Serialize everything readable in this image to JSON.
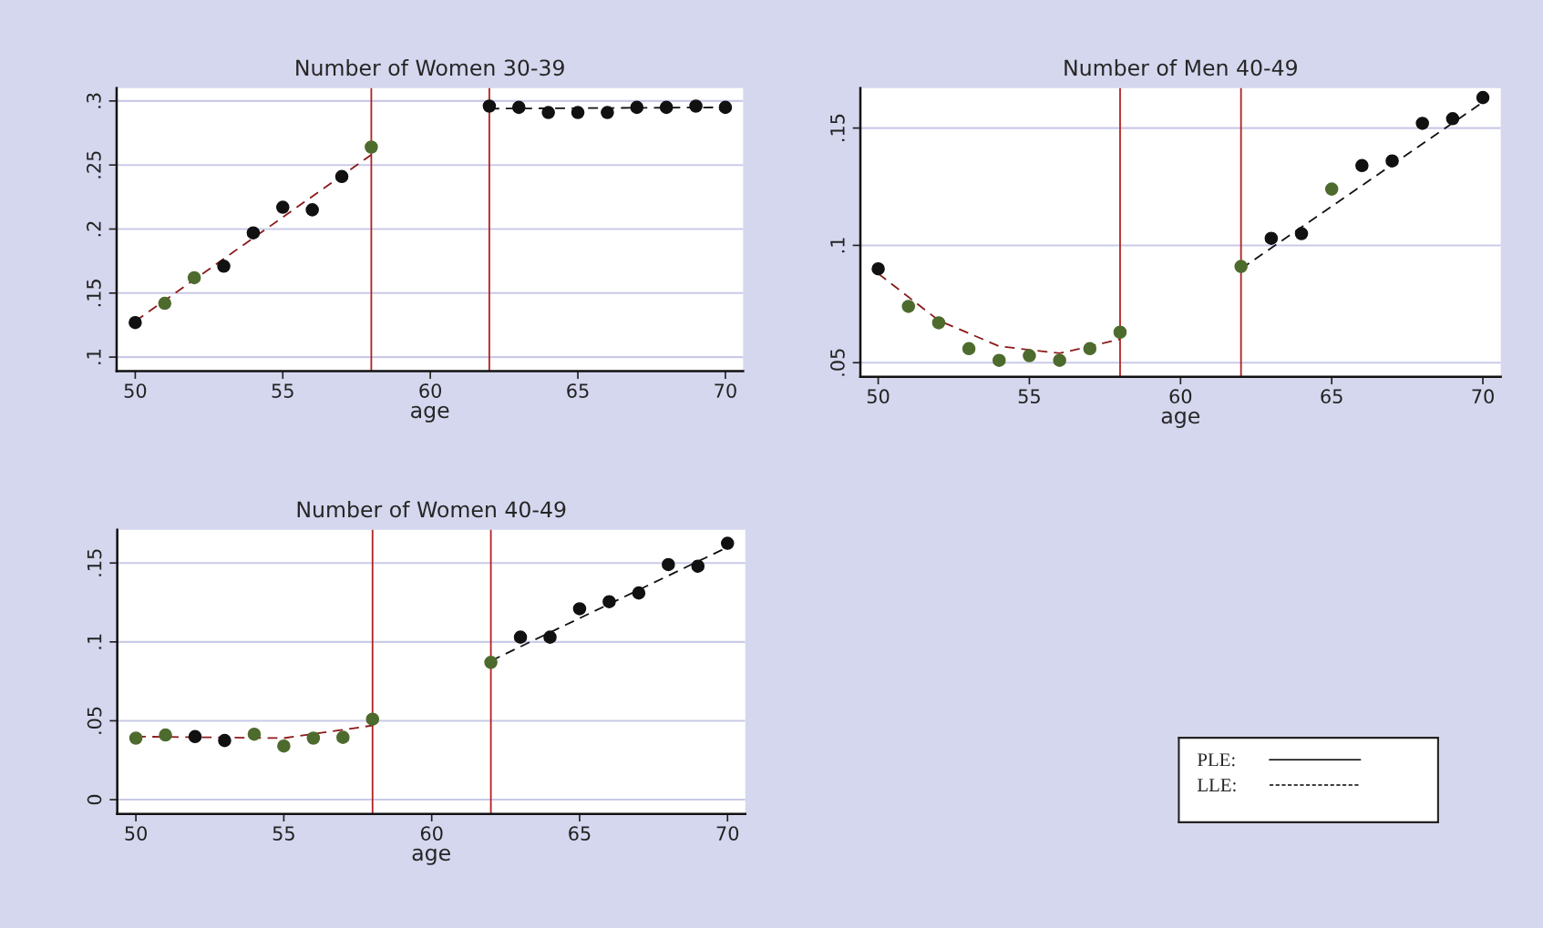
{
  "chart_data": [
    {
      "type": "scatter",
      "title": "Number of Women 30-39",
      "xlabel": "age",
      "xlim": [
        49.37,
        70.6
      ],
      "xticks": [
        50,
        55,
        60,
        65,
        70
      ],
      "ylim": [
        0.089,
        0.31
      ],
      "yticks": [
        {
          "value": 0.1,
          "label": ".1"
        },
        {
          "value": 0.15,
          "label": ".15"
        },
        {
          "value": 0.2,
          "label": ".2"
        },
        {
          "value": 0.25,
          "label": ".25"
        },
        {
          "value": 0.3,
          "label": ".3"
        }
      ],
      "grid": "y",
      "marker": "circle",
      "ref_lines": [
        {
          "axis": "x",
          "value": 58,
          "color": "#b22222"
        },
        {
          "axis": "x",
          "value": 62,
          "color": "#b22222"
        }
      ],
      "series": [
        {
          "type": "scatter",
          "x": [
            50,
            51,
            52,
            53,
            54,
            55,
            56,
            57,
            58,
            62,
            63,
            64,
            65,
            66,
            67,
            68,
            69,
            70
          ],
          "values": [
            0.127,
            0.142,
            0.162,
            0.171,
            0.197,
            0.217,
            0.215,
            0.241,
            0.264,
            0.296,
            0.295,
            0.291,
            0.291,
            0.291,
            0.295,
            0.295,
            0.296,
            0.295
          ],
          "colors": [
            "#111111",
            "#4e6b2e",
            "#4e6b2e",
            "#111111",
            "#111111",
            "#111111",
            "#111111",
            "#111111",
            "#4e6b2e",
            "#111111",
            "#111111",
            "#111111",
            "#111111",
            "#111111",
            "#111111",
            "#111111",
            "#111111",
            "#111111"
          ]
        },
        {
          "type": "line",
          "x": [
            50,
            58
          ],
          "values": [
            0.128,
            0.258
          ],
          "color": "#8b1a1a",
          "line_style": "dashed",
          "marker": "none"
        },
        {
          "type": "line",
          "x": [
            62,
            70
          ],
          "values": [
            0.294,
            0.295
          ],
          "color": "#111111",
          "line_style": "dashed",
          "marker": "none"
        }
      ]
    },
    {
      "type": "scatter",
      "title": "Number of Men 40-49",
      "xlabel": "age",
      "xlim": [
        49.41,
        70.59
      ],
      "xticks": [
        50,
        55,
        60,
        65,
        70
      ],
      "ylim": [
        0.044,
        0.167
      ],
      "yticks": [
        {
          "value": 0.05,
          "label": ".05"
        },
        {
          "value": 0.1,
          "label": ".1"
        },
        {
          "value": 0.15,
          "label": ".15"
        }
      ],
      "grid": "y",
      "marker": "circle",
      "ref_lines": [
        {
          "axis": "x",
          "value": 58,
          "color": "#b22222"
        },
        {
          "axis": "x",
          "value": 62,
          "color": "#b22222"
        }
      ],
      "series": [
        {
          "type": "scatter",
          "x": [
            50,
            51,
            52,
            53,
            54,
            55,
            56,
            57,
            58,
            62,
            63,
            64,
            65,
            66,
            67,
            68,
            69,
            70
          ],
          "values": [
            0.09,
            0.074,
            0.067,
            0.056,
            0.051,
            0.053,
            0.051,
            0.056,
            0.063,
            0.091,
            0.103,
            0.105,
            0.124,
            0.134,
            0.136,
            0.152,
            0.154,
            0.163
          ],
          "colors": [
            "#111111",
            "#4e6b2e",
            "#4e6b2e",
            "#4e6b2e",
            "#4e6b2e",
            "#4e6b2e",
            "#4e6b2e",
            "#4e6b2e",
            "#4e6b2e",
            "#4e6b2e",
            "#111111",
            "#111111",
            "#4e6b2e",
            "#111111",
            "#111111",
            "#111111",
            "#111111",
            "#111111"
          ]
        },
        {
          "type": "line",
          "x": [
            50,
            52,
            54,
            56,
            58
          ],
          "values": [
            0.088,
            0.068,
            0.057,
            0.054,
            0.06
          ],
          "color": "#8b1a1a",
          "line_style": "dashed",
          "marker": "none"
        },
        {
          "type": "line",
          "x": [
            62,
            70
          ],
          "values": [
            0.09,
            0.161
          ],
          "color": "#111111",
          "line_style": "dashed",
          "marker": "none"
        }
      ]
    },
    {
      "type": "scatter",
      "title": "Number of Women 40-49",
      "xlabel": "age",
      "xlim": [
        49.37,
        70.6
      ],
      "xticks": [
        50,
        55,
        60,
        65,
        70
      ],
      "ylim": [
        -0.009,
        0.171
      ],
      "yticks": [
        {
          "value": 0,
          "label": "0"
        },
        {
          "value": 0.05,
          "label": ".05"
        },
        {
          "value": 0.1,
          "label": ".1"
        },
        {
          "value": 0.15,
          "label": ".15"
        }
      ],
      "grid": "y",
      "marker": "circle",
      "ref_lines": [
        {
          "axis": "x",
          "value": 58,
          "color": "#b22222"
        },
        {
          "axis": "x",
          "value": 62,
          "color": "#b22222"
        }
      ],
      "series": [
        {
          "type": "scatter",
          "x": [
            50,
            51,
            52,
            53,
            54,
            55,
            56,
            57,
            58,
            62,
            63,
            64,
            65,
            66,
            67,
            68,
            69,
            70
          ],
          "values": [
            0.039,
            0.041,
            0.04,
            0.0375,
            0.0415,
            0.034,
            0.039,
            0.0395,
            0.051,
            0.087,
            0.103,
            0.103,
            0.121,
            0.1255,
            0.131,
            0.149,
            0.148,
            0.1625
          ],
          "colors": [
            "#4e6b2e",
            "#4e6b2e",
            "#111111",
            "#111111",
            "#4e6b2e",
            "#4e6b2e",
            "#4e6b2e",
            "#4e6b2e",
            "#4e6b2e",
            "#4e6b2e",
            "#111111",
            "#111111",
            "#111111",
            "#111111",
            "#111111",
            "#111111",
            "#111111",
            "#111111"
          ]
        },
        {
          "type": "line",
          "x": [
            50,
            55,
            58
          ],
          "values": [
            0.04,
            0.039,
            0.047
          ],
          "color": "#8b1a1a",
          "line_style": "dashed",
          "marker": "none"
        },
        {
          "type": "line",
          "x": [
            62,
            70
          ],
          "values": [
            0.088,
            0.16
          ],
          "color": "#111111",
          "line_style": "dashed",
          "marker": "none"
        }
      ]
    },
    {
      "type": "other",
      "annotations": [
        "PLE:",
        "LLE:"
      ]
    }
  ]
}
